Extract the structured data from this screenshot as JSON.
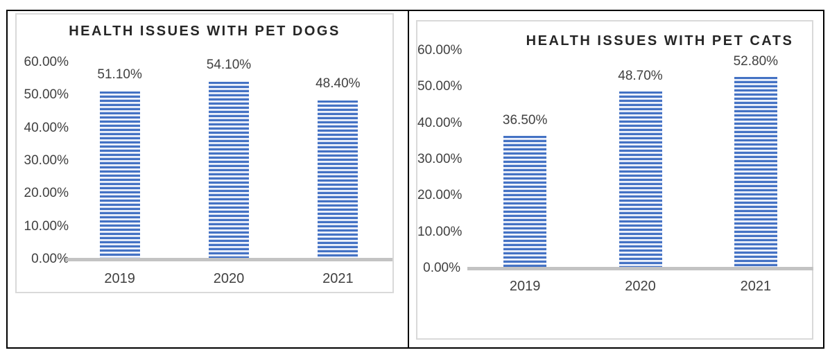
{
  "document": {
    "background_color": "#ffffff",
    "table_border_color": "#000000",
    "panel_border_color": "#d9d9d9"
  },
  "chart_data": [
    {
      "type": "bar",
      "title": "HEALTH ISSUES WITH PET DOGS",
      "categories": [
        "2019",
        "2020",
        "2021"
      ],
      "values": [
        51.1,
        54.1,
        48.4
      ],
      "value_labels": [
        "51.10%",
        "54.10%",
        "48.40%"
      ],
      "y_ticks": [
        "60.00%",
        "50.00%",
        "40.00%",
        "30.00%",
        "20.00%",
        "10.00%",
        "0.00%"
      ],
      "ylim": [
        0,
        60
      ],
      "xlabel": "",
      "ylabel": "",
      "grid": false,
      "legend": "none",
      "bar_pattern": "horizontal-stripe",
      "bar_color": "#4472c4",
      "axis_line_color": "#c3c3c3",
      "text_color": "#404040",
      "title_color": "#262626"
    },
    {
      "type": "bar",
      "title": "HEALTH ISSUES WITH PET CATS",
      "categories": [
        "2019",
        "2020",
        "2021"
      ],
      "values": [
        36.5,
        48.7,
        52.8
      ],
      "value_labels": [
        "36.50%",
        "48.70%",
        "52.80%"
      ],
      "y_ticks": [
        "60.00%",
        "50.00%",
        "40.00%",
        "30.00%",
        "20.00%",
        "10.00%",
        "0.00%"
      ],
      "ylim": [
        0,
        60
      ],
      "xlabel": "",
      "ylabel": "",
      "grid": false,
      "legend": "none",
      "bar_pattern": "horizontal-stripe",
      "bar_color": "#4472c4",
      "axis_line_color": "#c3c3c3",
      "text_color": "#404040",
      "title_color": "#262626"
    }
  ]
}
